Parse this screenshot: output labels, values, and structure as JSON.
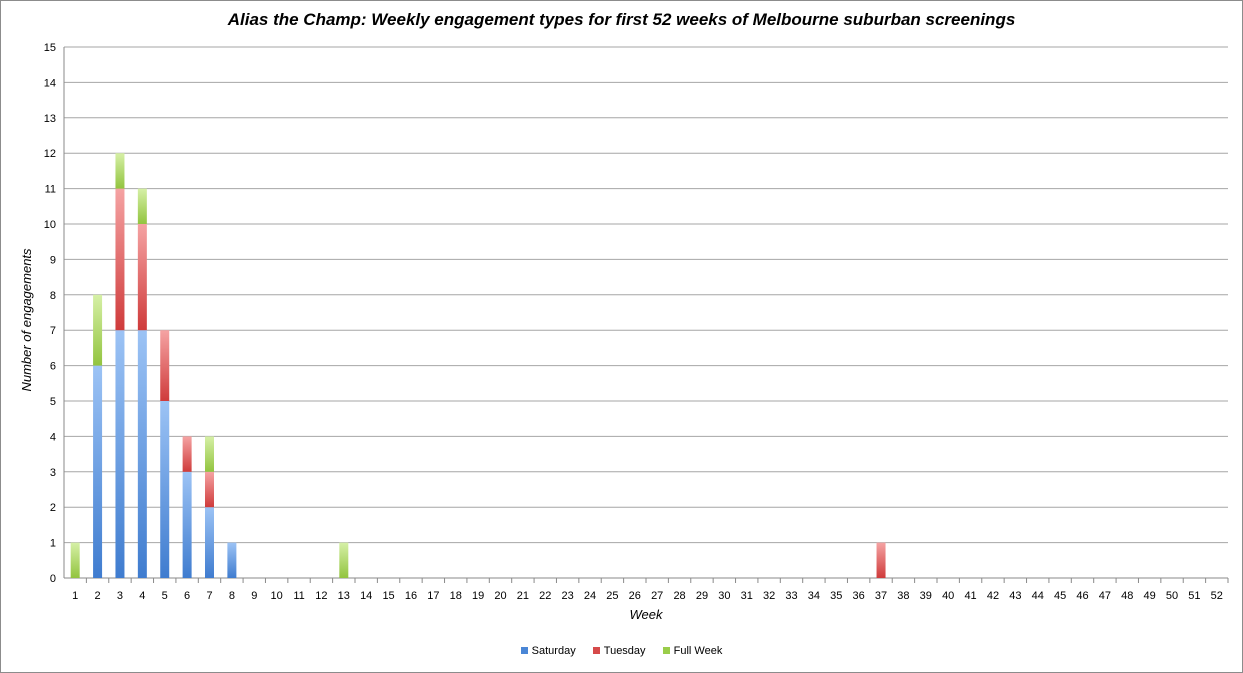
{
  "chart_data": {
    "type": "bar",
    "stacked": true,
    "title": "Alias the Champ: Weekly engagement types for first 52 weeks of Melbourne suburban screenings",
    "xlabel": "Week",
    "ylabel": "Number of engagements",
    "ylim": [
      0,
      15
    ],
    "y_ticks": [
      0,
      1,
      2,
      3,
      4,
      5,
      6,
      7,
      8,
      9,
      10,
      11,
      12,
      13,
      14,
      15
    ],
    "grid": true,
    "legend_position": "bottom",
    "categories": [
      "1",
      "2",
      "3",
      "4",
      "5",
      "6",
      "7",
      "8",
      "9",
      "10",
      "11",
      "12",
      "13",
      "14",
      "15",
      "16",
      "17",
      "18",
      "19",
      "20",
      "21",
      "22",
      "23",
      "24",
      "25",
      "26",
      "27",
      "28",
      "29",
      "30",
      "31",
      "32",
      "33",
      "34",
      "35",
      "36",
      "37",
      "38",
      "39",
      "40",
      "41",
      "42",
      "43",
      "44",
      "45",
      "46",
      "47",
      "48",
      "49",
      "50",
      "51",
      "52"
    ],
    "series": [
      {
        "name": "Saturday",
        "color": "#4a86d6",
        "values": [
          0,
          6,
          7,
          7,
          5,
          3,
          2,
          1,
          0,
          0,
          0,
          0,
          0,
          0,
          0,
          0,
          0,
          0,
          0,
          0,
          0,
          0,
          0,
          0,
          0,
          0,
          0,
          0,
          0,
          0,
          0,
          0,
          0,
          0,
          0,
          0,
          0,
          0,
          0,
          0,
          0,
          0,
          0,
          0,
          0,
          0,
          0,
          0,
          0,
          0,
          0,
          0
        ]
      },
      {
        "name": "Tuesday",
        "color": "#d64a4a",
        "values": [
          0,
          0,
          4,
          3,
          2,
          1,
          1,
          0,
          0,
          0,
          0,
          0,
          0,
          0,
          0,
          0,
          0,
          0,
          0,
          0,
          0,
          0,
          0,
          0,
          0,
          0,
          0,
          0,
          0,
          0,
          0,
          0,
          0,
          0,
          0,
          0,
          1,
          0,
          0,
          0,
          0,
          0,
          0,
          0,
          0,
          0,
          0,
          0,
          0,
          0,
          0,
          0
        ]
      },
      {
        "name": "Full Week",
        "color": "#9acd4a",
        "values": [
          1,
          2,
          1,
          1,
          0,
          0,
          1,
          0,
          0,
          0,
          0,
          0,
          1,
          0,
          0,
          0,
          0,
          0,
          0,
          0,
          0,
          0,
          0,
          0,
          0,
          0,
          0,
          0,
          0,
          0,
          0,
          0,
          0,
          0,
          0,
          0,
          0,
          0,
          0,
          0,
          0,
          0,
          0,
          0,
          0,
          0,
          0,
          0,
          0,
          0,
          0,
          0
        ]
      }
    ]
  }
}
